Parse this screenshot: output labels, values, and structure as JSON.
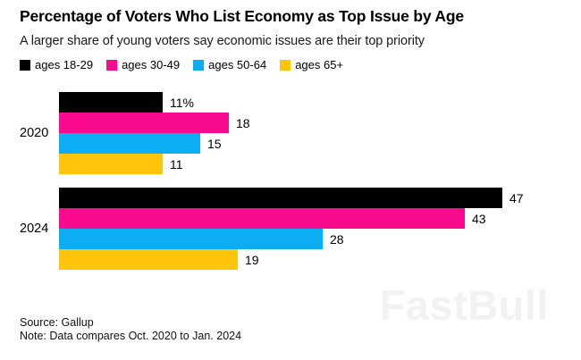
{
  "header": {
    "title": "Percentage of Voters Who List Economy as Top Issue by Age",
    "subtitle": "A larger share of young voters say economic issues are their top priority"
  },
  "legend": [
    {
      "name": "ages-18-29",
      "label": "ages 18-29",
      "color": "#000000"
    },
    {
      "name": "ages-30-49",
      "label": "ages 30-49",
      "color": "#FA0A8C"
    },
    {
      "name": "ages-50-64",
      "label": "ages 50-64",
      "color": "#0CADF2"
    },
    {
      "name": "ages-65-plus",
      "label": "ages 65+",
      "color": "#FFC50A"
    }
  ],
  "chart_data": {
    "type": "bar",
    "orientation": "horizontal",
    "categories": [
      "2020",
      "2024"
    ],
    "series": [
      {
        "name": "ages 18-29",
        "color": "#000000",
        "values": [
          11,
          47
        ]
      },
      {
        "name": "ages 30-49",
        "color": "#FA0A8C",
        "values": [
          18,
          43
        ]
      },
      {
        "name": "ages 50-64",
        "color": "#0CADF2",
        "values": [
          15,
          28
        ]
      },
      {
        "name": "ages 65+",
        "color": "#FFC50A",
        "values": [
          11,
          19
        ]
      }
    ],
    "value_labels": [
      [
        "11%",
        "18",
        "15",
        "11"
      ],
      [
        "47",
        "43",
        "28",
        "19"
      ]
    ],
    "xlim": [
      0,
      50
    ],
    "grid": false,
    "legend_position": "top"
  },
  "footer": {
    "source": "Source: Gallup",
    "note": "Note: Data compares Oct. 2020 to Jan. 2024"
  },
  "watermark": "FastBull"
}
